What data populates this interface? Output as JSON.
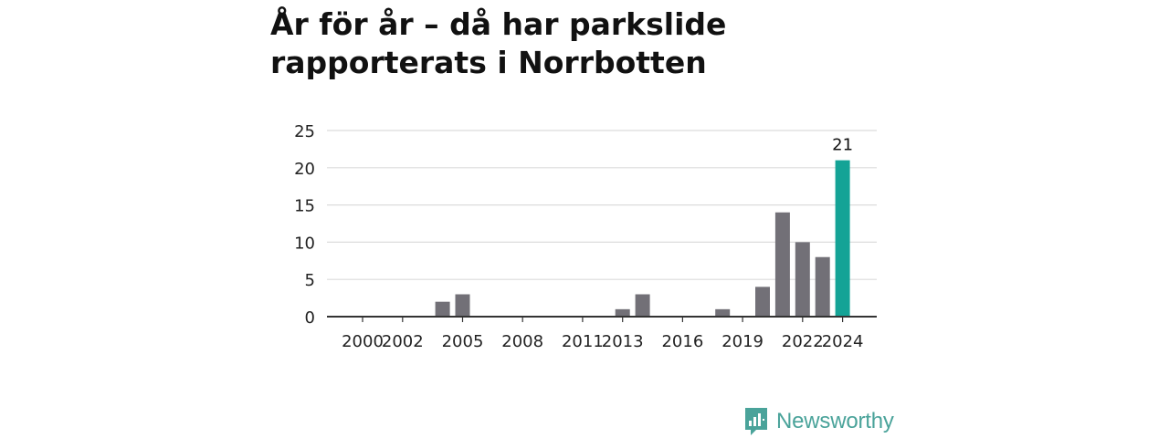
{
  "title": "År för år – då har parkslide rapporterats i Norrbotten",
  "brand": {
    "name": "Newsworthy",
    "color": "#4aa39a"
  },
  "chart_data": {
    "type": "bar",
    "categories": [
      "2000",
      "2001",
      "2002",
      "2003",
      "2004",
      "2005",
      "2006",
      "2007",
      "2008",
      "2009",
      "2010",
      "2011",
      "2012",
      "2013",
      "2014",
      "2015",
      "2016",
      "2017",
      "2018",
      "2019",
      "2020",
      "2021",
      "2022",
      "2023",
      "2024"
    ],
    "values": [
      0,
      0,
      0,
      0,
      2,
      3,
      0,
      0,
      0,
      0,
      0,
      0,
      0,
      1,
      3,
      0,
      0,
      0,
      1,
      0,
      4,
      14,
      10,
      8,
      21
    ],
    "x_tick_labels": [
      "2000",
      "2002",
      "2005",
      "2008",
      "2011",
      "2013",
      "2016",
      "2019",
      "2022",
      "2024"
    ],
    "y_ticks": [
      0,
      5,
      10,
      15,
      20,
      25
    ],
    "ylim": [
      0,
      25
    ],
    "highlight": {
      "category": "2024",
      "label": "21"
    },
    "grid": true,
    "colors": {
      "bar": "#727077",
      "highlight": "#14a396",
      "grid": "#dcdcdc",
      "axis": "#333333"
    }
  }
}
